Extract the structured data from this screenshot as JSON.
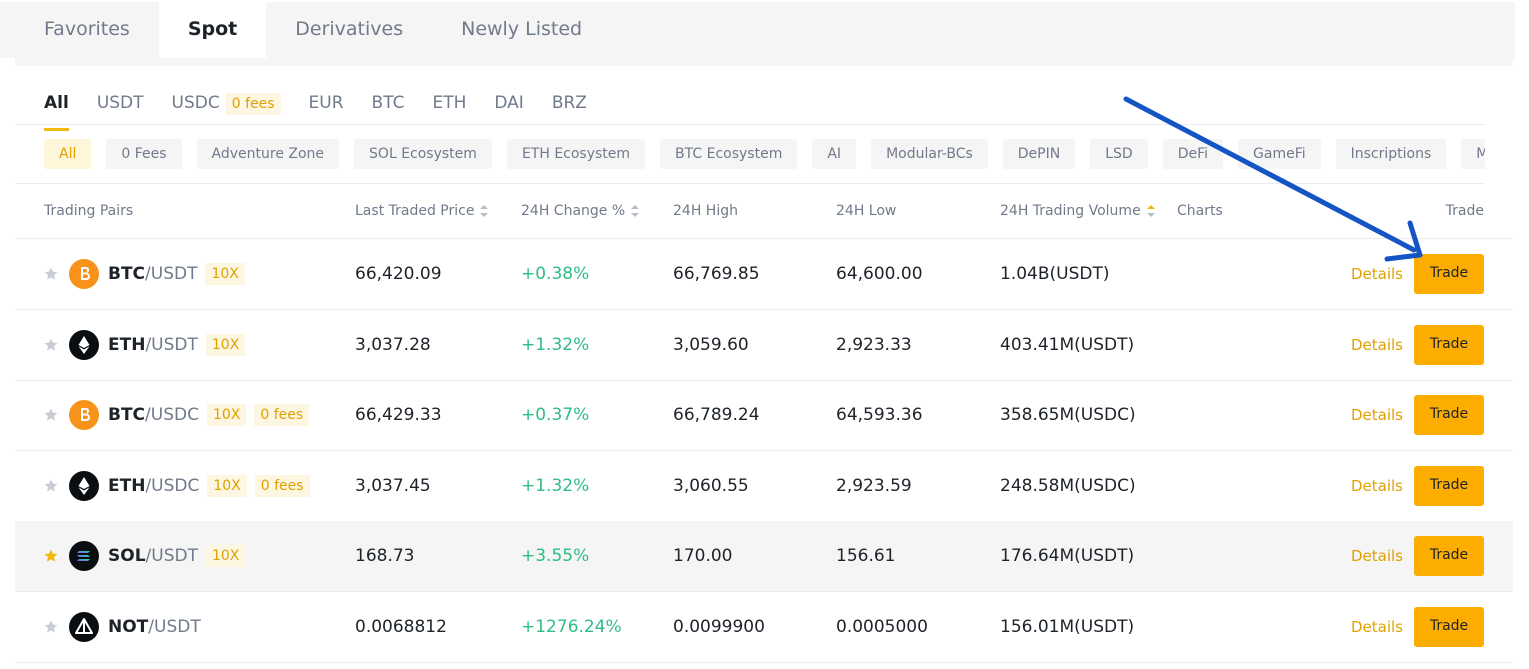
{
  "tabs": [
    {
      "label": "Favorites"
    },
    {
      "label": "Spot",
      "active": true
    },
    {
      "label": "Derivatives"
    },
    {
      "label": "Newly Listed"
    }
  ],
  "quote_tabs": [
    {
      "label": "All",
      "active": true
    },
    {
      "label": "USDT"
    },
    {
      "label": "USDC",
      "badge": "0 fees"
    },
    {
      "label": "EUR"
    },
    {
      "label": "BTC"
    },
    {
      "label": "ETH"
    },
    {
      "label": "DAI"
    },
    {
      "label": "BRZ"
    }
  ],
  "filters": [
    {
      "label": "All",
      "active": true
    },
    {
      "label": "0 Fees"
    },
    {
      "label": "Adventure Zone"
    },
    {
      "label": "SOL Ecosystem"
    },
    {
      "label": "ETH Ecosystem"
    },
    {
      "label": "BTC Ecosystem"
    },
    {
      "label": "AI"
    },
    {
      "label": "Modular-BCs"
    },
    {
      "label": "DePIN"
    },
    {
      "label": "LSD"
    },
    {
      "label": "DeFi"
    },
    {
      "label": "GameFi"
    },
    {
      "label": "Inscriptions"
    },
    {
      "label": "Meme"
    }
  ],
  "columns": [
    {
      "label": "Trading Pairs"
    },
    {
      "label": "Last Traded Price",
      "sortable": true
    },
    {
      "label": "24H Change %",
      "sortable": true
    },
    {
      "label": "24H High"
    },
    {
      "label": "24H Low"
    },
    {
      "label": "24H Trading Volume",
      "sortable": true,
      "sort_active": true
    },
    {
      "label": "Charts"
    },
    {
      "label": "Trade"
    }
  ],
  "actions": {
    "details": "Details",
    "trade": "Trade"
  },
  "rows": [
    {
      "icon": "bitcoin",
      "base": "BTC",
      "quote": "/USDT",
      "tags": [
        "10X"
      ],
      "price": "66,420.09",
      "change": "+0.38%",
      "high": "66,769.85",
      "low": "64,600.00",
      "volume": "1.04B(USDT)"
    },
    {
      "icon": "ether",
      "base": "ETH",
      "quote": "/USDT",
      "tags": [
        "10X"
      ],
      "price": "3,037.28",
      "change": "+1.32%",
      "high": "3,059.60",
      "low": "2,923.33",
      "volume": "403.41M(USDT)"
    },
    {
      "icon": "bitcoin",
      "base": "BTC",
      "quote": "/USDC",
      "tags": [
        "10X",
        "0 fees"
      ],
      "price": "66,429.33",
      "change": "+0.37%",
      "high": "66,789.24",
      "low": "64,593.36",
      "volume": "358.65M(USDC)"
    },
    {
      "icon": "ether",
      "base": "ETH",
      "quote": "/USDC",
      "tags": [
        "10X",
        "0 fees"
      ],
      "price": "3,037.45",
      "change": "+1.32%",
      "high": "3,060.55",
      "low": "2,923.59",
      "volume": "248.58M(USDC)"
    },
    {
      "icon": "solana",
      "base": "SOL",
      "quote": "/USDT",
      "tags": [
        "10X"
      ],
      "price": "168.73",
      "change": "+3.55%",
      "high": "170.00",
      "low": "156.61",
      "volume": "176.64M(USDT)",
      "favorite": true,
      "hover": true
    },
    {
      "icon": "notcoin",
      "base": "NOT",
      "quote": "/USDT",
      "tags": [],
      "price": "0.0068812",
      "change": "+1276.24%",
      "high": "0.0099900",
      "low": "0.0005000",
      "volume": "156.01M(USDT)"
    }
  ]
}
